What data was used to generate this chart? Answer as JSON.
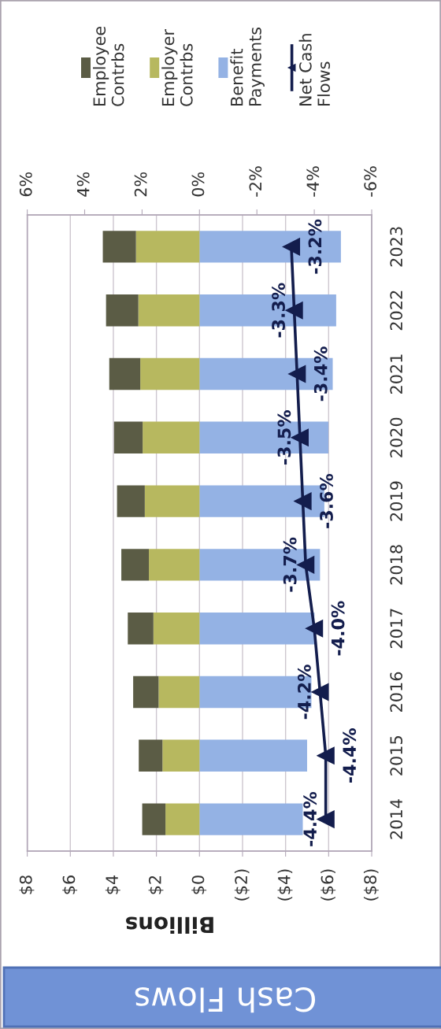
{
  "chart_data": {
    "type": "bar",
    "title": "Cash Flows",
    "xlabel": "Billions",
    "orientation": "horizontal",
    "stacked": true,
    "categories": [
      "2023",
      "2022",
      "2021",
      "2020",
      "2019",
      "2018",
      "2017",
      "2016",
      "2015",
      "2014"
    ],
    "series": [
      {
        "name": "Benefit Payments",
        "color": "#94b2e4",
        "values": [
          -6.57,
          -6.35,
          -6.19,
          -5.99,
          -5.8,
          -5.6,
          -5.34,
          -5.2,
          -5.0,
          -4.8
        ]
      },
      {
        "name": "Employer Contrbs",
        "color": "#b7b85f",
        "values": [
          2.95,
          2.84,
          2.75,
          2.64,
          2.54,
          2.35,
          2.14,
          1.9,
          1.72,
          1.58
        ]
      },
      {
        "name": "Employee Contrbs",
        "color": "#5b5c45",
        "values": [
          1.54,
          1.5,
          1.44,
          1.33,
          1.29,
          1.28,
          1.19,
          1.18,
          1.1,
          1.08
        ]
      },
      {
        "name": "Net Cash Flows",
        "type": "line",
        "axis": "x2",
        "color": "#131d4d",
        "marker": "triangle",
        "values": [
          -3.2,
          -3.3,
          -3.4,
          -3.5,
          -3.6,
          -3.7,
          -4.0,
          -4.2,
          -4.4,
          -4.4
        ],
        "value_labels": [
          "-3.2%",
          "-3.3%",
          "-3.4%",
          "-3.5%",
          "-3.6%",
          "-3.7%",
          "-4.0%",
          "-4.2%",
          "-4.4%",
          "-4.4%"
        ]
      }
    ],
    "xlim": [
      8,
      -8
    ],
    "xticks": [
      {
        "value": 8,
        "label": "$8"
      },
      {
        "value": 6,
        "label": "$6"
      },
      {
        "value": 4,
        "label": "$4"
      },
      {
        "value": 2,
        "label": "$2"
      },
      {
        "value": 0,
        "label": "$0"
      },
      {
        "value": -2,
        "label": "($2)"
      },
      {
        "value": -4,
        "label": "($4)"
      },
      {
        "value": -6,
        "label": "($6)"
      },
      {
        "value": -8,
        "label": "($8)"
      }
    ],
    "x2lim": [
      6,
      -6
    ],
    "x2ticks": [
      {
        "value": 6,
        "label": "6%"
      },
      {
        "value": 4,
        "label": "4%"
      },
      {
        "value": 2,
        "label": "2%"
      },
      {
        "value": 0,
        "label": "0%"
      },
      {
        "value": -2,
        "label": "-2%"
      },
      {
        "value": -4,
        "label": "-4%"
      },
      {
        "value": -6,
        "label": "-6%"
      }
    ],
    "grid": "x",
    "legend": "top"
  }
}
